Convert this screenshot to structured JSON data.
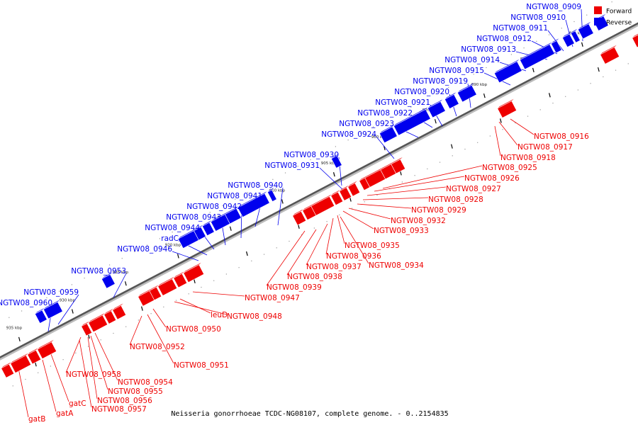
{
  "caption": "Neisseria gonorrhoeae TCDC-NG08107, complete genome. - 0..2154835",
  "legend": {
    "forward_label": "Forward",
    "reverse_label": "Reverse",
    "forward_color": "#ee0000",
    "reverse_color": "#0000ee"
  },
  "colors": {
    "forward": "#ee0000",
    "reverse": "#0000ee",
    "backbone": "#555555",
    "tick": "#000000"
  },
  "ticks": [
    "880 kbp",
    "885 kbp",
    "890 kbp",
    "895 kbp",
    "900 kbp",
    "905 kbp",
    "910 kbp",
    "915 kbp",
    "920 kbp",
    "925 kbp",
    "930 kbp",
    "935 kbp"
  ],
  "reverse_labels": [
    "NGTW08_0909",
    "NGTW08_0910",
    "NGTW08_0911",
    "NGTW08_0912",
    "NGTW08_0913",
    "NGTW08_0914",
    "NGTW08_0915",
    "NGTW08_0919",
    "NGTW08_0920",
    "NGTW08_0921",
    "NGTW08_0922",
    "NGTW08_0923",
    "NGTW08_0924",
    "NGTW08_0930",
    "NGTW08_0931",
    "NGTW08_0940",
    "NGTW08_0941",
    "NGTW08_0942",
    "NGTW08_0943",
    "NGTW08_0944",
    "radC",
    "NGTW08_0946",
    "NGTW08_0953",
    "NGTW08_0959",
    "NGTW08_0960"
  ],
  "forward_labels": [
    "NGTW08_0916",
    "NGTW08_0917",
    "NGTW08_0918",
    "NGTW08_0925",
    "NGTW08_0926",
    "NGTW08_0927",
    "NGTW08_0928",
    "NGTW08_0929",
    "NGTW08_0932",
    "NGTW08_0933",
    "NGTW08_0935",
    "NGTW08_0936",
    "NGTW08_0934",
    "NGTW08_0937",
    "NGTW08_0938",
    "NGTW08_0939",
    "NGTW08_0947",
    "leuD",
    "NGTW08_0948",
    "NGTW08_0950",
    "NGTW08_0952",
    "NGTW08_0951",
    "NGTW08_0958",
    "NGTW08_0954",
    "NGTW08_0955",
    "NGTW08_0956",
    "gatC",
    "NGTW08_0957",
    "gatA",
    "gatB"
  ]
}
